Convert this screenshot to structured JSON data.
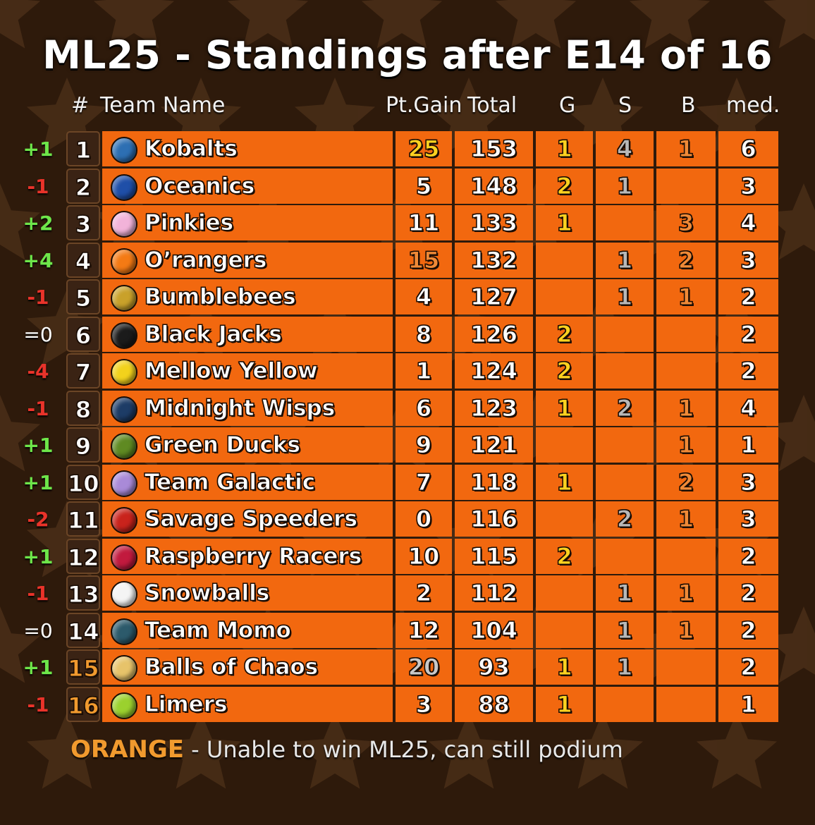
{
  "title": "ML25 - Standings after E14 of 16",
  "headers": {
    "rank": "#",
    "team": "Team Name",
    "gain": "Pt.Gain",
    "total": "Total",
    "g": "G",
    "s": "S",
    "b": "B",
    "med": "med."
  },
  "colors": {
    "background": "#2e1a0b",
    "cell": "#f2680f",
    "gold": "#ffd21f",
    "silver": "#b8b8b8",
    "bronze": "#f08a37",
    "up": "#6ee64a",
    "down": "#e9332a",
    "eliminated": "#f19a2e"
  },
  "rows": [
    {
      "change": "+1",
      "rank": "1",
      "team": "Kobalts",
      "gain": "25",
      "total": "153",
      "g": "1",
      "s": "4",
      "b": "1",
      "med": "6",
      "marble": "#2d6fb3"
    },
    {
      "change": "-1",
      "rank": "2",
      "team": "Oceanics",
      "gain": "5",
      "total": "148",
      "g": "2",
      "s": "1",
      "b": "",
      "med": "3",
      "marble": "#1f4fa8"
    },
    {
      "change": "+2",
      "rank": "3",
      "team": "Pinkies",
      "gain": "11",
      "total": "133",
      "g": "1",
      "s": "",
      "b": "3",
      "med": "4",
      "marble": "#f2b3d9"
    },
    {
      "change": "+4",
      "rank": "4",
      "team": "O’rangers",
      "gain": "15",
      "total": "132",
      "g": "",
      "s": "1",
      "b": "2",
      "med": "3",
      "marble": "#f47a14"
    },
    {
      "change": "-1",
      "rank": "5",
      "team": "Bumblebees",
      "gain": "4",
      "total": "127",
      "g": "",
      "s": "1",
      "b": "1",
      "med": "2",
      "marble": "#c9a12a"
    },
    {
      "change": "=0",
      "rank": "6",
      "team": "Black Jacks",
      "gain": "8",
      "total": "126",
      "g": "2",
      "s": "",
      "b": "",
      "med": "2",
      "marble": "#1b1b1b"
    },
    {
      "change": "-4",
      "rank": "7",
      "team": "Mellow Yellow",
      "gain": "1",
      "total": "124",
      "g": "2",
      "s": "",
      "b": "",
      "med": "2",
      "marble": "#f2d21c"
    },
    {
      "change": "-1",
      "rank": "8",
      "team": "Midnight Wisps",
      "gain": "6",
      "total": "123",
      "g": "1",
      "s": "2",
      "b": "1",
      "med": "4",
      "marble": "#1d3c66"
    },
    {
      "change": "+1",
      "rank": "9",
      "team": "Green Ducks",
      "gain": "9",
      "total": "121",
      "g": "",
      "s": "",
      "b": "1",
      "med": "1",
      "marble": "#5f8a22"
    },
    {
      "change": "+1",
      "rank": "10",
      "team": "Team Galactic",
      "gain": "7",
      "total": "118",
      "g": "1",
      "s": "",
      "b": "2",
      "med": "3",
      "marble": "#a98ad8"
    },
    {
      "change": "-2",
      "rank": "11",
      "team": "Savage Speeders",
      "gain": "0",
      "total": "116",
      "g": "",
      "s": "2",
      "b": "1",
      "med": "3",
      "marble": "#c9231c"
    },
    {
      "change": "+1",
      "rank": "12",
      "team": "Raspberry Racers",
      "gain": "10",
      "total": "115",
      "g": "2",
      "s": "",
      "b": "",
      "med": "2",
      "marble": "#c21a3e"
    },
    {
      "change": "-1",
      "rank": "13",
      "team": "Snowballs",
      "gain": "2",
      "total": "112",
      "g": "",
      "s": "1",
      "b": "1",
      "med": "2",
      "marble": "#f4f4f4"
    },
    {
      "change": "=0",
      "rank": "14",
      "team": "Team Momo",
      "gain": "12",
      "total": "104",
      "g": "",
      "s": "1",
      "b": "1",
      "med": "2",
      "marble": "#2c5a6b"
    },
    {
      "change": "+1",
      "rank": "15",
      "team": "Balls of Chaos",
      "gain": "20",
      "total": "93",
      "g": "1",
      "s": "1",
      "b": "",
      "med": "2",
      "marble": "#e7c36a"
    },
    {
      "change": "-1",
      "rank": "16",
      "team": "Limers",
      "gain": "3",
      "total": "88",
      "g": "1",
      "s": "",
      "b": "",
      "med": "1",
      "marble": "#9bd12e"
    }
  ],
  "eliminated_ranks": [
    "15",
    "16"
  ],
  "gain_highlights": {
    "25": "gold",
    "20": "silver",
    "15": "bronze"
  },
  "footer": {
    "highlight": "ORANGE",
    "text": " - Unable to win ML25, can still podium"
  }
}
